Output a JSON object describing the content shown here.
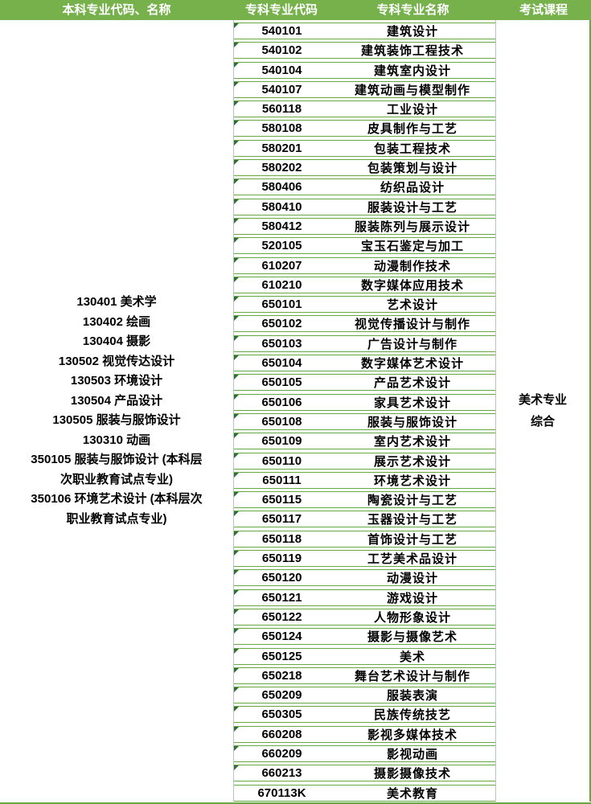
{
  "header": {
    "undergrad": "本科专业代码、名称",
    "code": "专科专业代码",
    "name": "专科专业名称",
    "exam": "考试课程"
  },
  "undergraduate_majors_lines": [
    "130401 美术学",
    "130402 绘画",
    "130404 摄影",
    "130502 视觉传达设计",
    "130503 环境设计",
    "130504 产品设计",
    "130505 服装与服饰设计",
    "130310 动画",
    "350105 服装与服饰设计 (本科层",
    "次职业教育试点专业)",
    "350106 环境艺术设计 (本科层次",
    "职业教育试点专业)"
  ],
  "rows": [
    {
      "code": "540101",
      "name": "建筑设计",
      "indicator": true
    },
    {
      "code": "540102",
      "name": "建筑装饰工程技术",
      "indicator": true
    },
    {
      "code": "540104",
      "name": "建筑室内设计",
      "indicator": true
    },
    {
      "code": "540107",
      "name": "建筑动画与模型制作",
      "indicator": true
    },
    {
      "code": "560118",
      "name": "工业设计",
      "indicator": true
    },
    {
      "code": "580108",
      "name": "皮具制作与工艺",
      "indicator": true
    },
    {
      "code": "580201",
      "name": "包装工程技术",
      "indicator": true
    },
    {
      "code": "580202",
      "name": "包装策划与设计",
      "indicator": true
    },
    {
      "code": "580406",
      "name": "纺织品设计",
      "indicator": true
    },
    {
      "code": "580410",
      "name": "服装设计与工艺",
      "indicator": true
    },
    {
      "code": "580412",
      "name": "服装陈列与展示设计",
      "indicator": true
    },
    {
      "code": "520105",
      "name": "宝玉石鉴定与加工",
      "indicator": true
    },
    {
      "code": "610207",
      "name": "动漫制作技术",
      "indicator": true
    },
    {
      "code": "610210",
      "name": "数字媒体应用技术",
      "indicator": true
    },
    {
      "code": "650101",
      "name": "艺术设计",
      "indicator": true
    },
    {
      "code": "650102",
      "name": "视觉传播设计与制作",
      "indicator": true
    },
    {
      "code": "650103",
      "name": "广告设计与制作",
      "indicator": true
    },
    {
      "code": "650104",
      "name": "数字媒体艺术设计",
      "indicator": true
    },
    {
      "code": "650105",
      "name": "产品艺术设计",
      "indicator": true
    },
    {
      "code": "650106",
      "name": "家具艺术设计",
      "indicator": true
    },
    {
      "code": "650108",
      "name": "服装与服饰设计",
      "indicator": true
    },
    {
      "code": "650109",
      "name": "室内艺术设计",
      "indicator": true
    },
    {
      "code": "650110",
      "name": "展示艺术设计",
      "indicator": true
    },
    {
      "code": "650111",
      "name": "环境艺术设计",
      "indicator": true
    },
    {
      "code": "650115",
      "name": "陶瓷设计与工艺",
      "indicator": true
    },
    {
      "code": "650117",
      "name": "玉器设计与工艺",
      "indicator": true
    },
    {
      "code": "650118",
      "name": "首饰设计与工艺",
      "indicator": true
    },
    {
      "code": "650119",
      "name": "工艺美术品设计",
      "indicator": true
    },
    {
      "code": "650120",
      "name": "动漫设计",
      "indicator": true
    },
    {
      "code": "650121",
      "name": "游戏设计",
      "indicator": true
    },
    {
      "code": "650122",
      "name": "人物形象设计",
      "indicator": true
    },
    {
      "code": "650124",
      "name": "摄影与摄像艺术",
      "indicator": true
    },
    {
      "code": "650125",
      "name": "美术",
      "indicator": true
    },
    {
      "code": "650218",
      "name": "舞台艺术设计与制作",
      "indicator": true
    },
    {
      "code": "650209",
      "name": "服装表演",
      "indicator": true
    },
    {
      "code": "650305",
      "name": "民族传统技艺",
      "indicator": true
    },
    {
      "code": "660208",
      "name": "影视多媒体技术",
      "indicator": true
    },
    {
      "code": "660209",
      "name": "影视动画",
      "indicator": true
    },
    {
      "code": "660213",
      "name": "摄影摄像技术",
      "indicator": true
    },
    {
      "code": "670113K",
      "name": "美术教育",
      "indicator": false
    }
  ],
  "exam_course": [
    "美术专业",
    "综合"
  ],
  "colors": {
    "header_green": "#76b14b",
    "row_border_green": "#67a744",
    "column_line_gray": "#b9c2cc",
    "indicator_green": "#2f7030"
  }
}
